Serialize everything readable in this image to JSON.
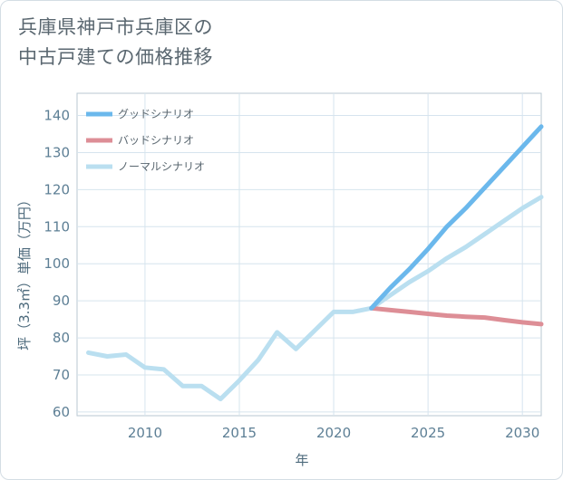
{
  "title_lines": [
    "兵庫県神戸市兵庫区の",
    "中古戸建ての価格推移"
  ],
  "chart_data": {
    "type": "line",
    "xlabel": "年",
    "ylabel": "坪（3.3㎡）単価（万円）",
    "xlim": [
      2006.4,
      2031
    ],
    "ylim": [
      59,
      146
    ],
    "xticks": [
      2010,
      2015,
      2020,
      2025,
      2030
    ],
    "yticks": [
      60,
      70,
      80,
      90,
      100,
      110,
      120,
      130,
      140
    ],
    "grid": true,
    "legend_position": "top-left",
    "series": [
      {
        "name": "グッドシナリオ",
        "color": "#6bb8ec",
        "x": [
          2022,
          2023,
          2024,
          2025,
          2026,
          2027,
          2028,
          2029,
          2030,
          2031
        ],
        "y": [
          88,
          93.5,
          98.5,
          104,
          110,
          115,
          120.5,
          126,
          131.5,
          137
        ]
      },
      {
        "name": "バッドシナリオ",
        "color": "#dd8e96",
        "x": [
          2022,
          2023,
          2024,
          2025,
          2026,
          2027,
          2028,
          2029,
          2030,
          2031
        ],
        "y": [
          88,
          87.5,
          87,
          86.5,
          86,
          85.7,
          85.5,
          84.8,
          84.2,
          83.7
        ]
      },
      {
        "name": "ノーマルシナリオ",
        "color": "#badff0",
        "x": [
          2007,
          2008,
          2009,
          2010,
          2011,
          2012,
          2013,
          2014,
          2015,
          2016,
          2017,
          2018,
          2019,
          2020,
          2021,
          2022,
          2023,
          2024,
          2025,
          2026,
          2027,
          2028,
          2029,
          2030,
          2031
        ],
        "y": [
          76,
          75,
          75.5,
          72,
          71.5,
          67,
          67,
          63.5,
          68.5,
          74,
          81.5,
          77,
          82,
          87,
          87,
          88,
          91.5,
          95,
          98,
          101.5,
          104.5,
          108,
          111.5,
          115,
          118
        ]
      }
    ]
  }
}
